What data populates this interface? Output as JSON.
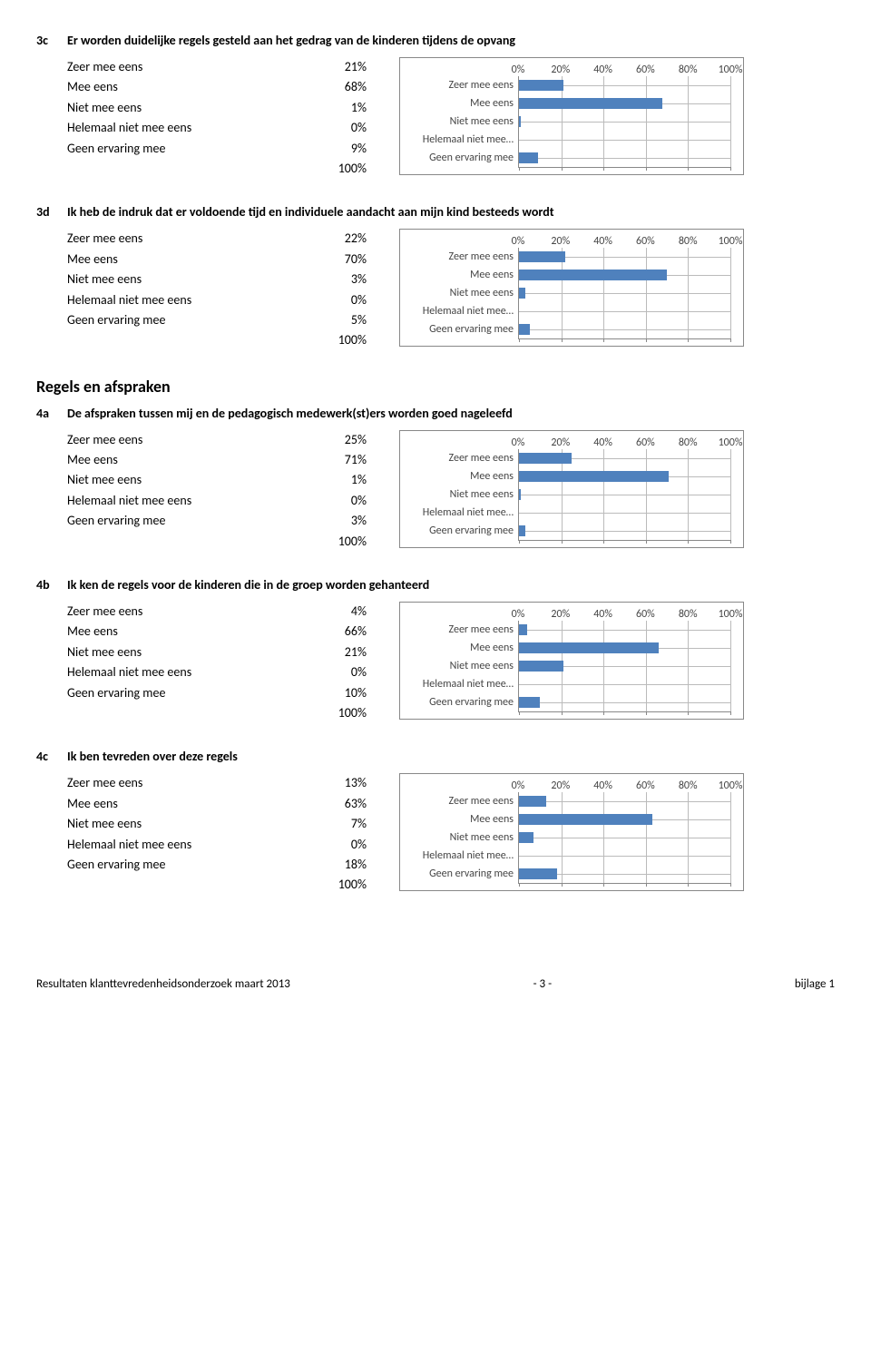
{
  "colors": {
    "bar": "#4f81bd",
    "grid": "#bbbbbb",
    "axis": "#888888",
    "border": "#888888"
  },
  "axis": {
    "ticks": [
      0,
      20,
      40,
      60,
      80,
      100
    ],
    "labels": [
      "0%",
      "20%",
      "40%",
      "60%",
      "80%",
      "100%"
    ]
  },
  "bar_categories": [
    "Zeer mee eens",
    "Mee eens",
    "Niet mee eens",
    "Helemaal niet mee…",
    "Geen ervaring mee"
  ],
  "table_labels": [
    "Zeer mee eens",
    "Mee eens",
    "Niet mee eens",
    "Helemaal niet mee eens",
    "Geen ervaring mee"
  ],
  "section_heading": "Regels en afspraken",
  "questions": [
    {
      "id": "3c",
      "title": "Er worden duidelijke regels gesteld aan het gedrag van de kinderen tijdens de opvang",
      "values_pct": [
        "21%",
        "68%",
        "1%",
        "0%",
        "9%"
      ],
      "total": "100%",
      "bar_values": [
        21,
        68,
        1,
        0,
        9
      ]
    },
    {
      "id": "3d",
      "title": "Ik heb de indruk dat er voldoende tijd en individuele aandacht aan mijn kind besteeds wordt",
      "values_pct": [
        "22%",
        "70%",
        "3%",
        "0%",
        "5%"
      ],
      "total": "100%",
      "bar_values": [
        22,
        70,
        3,
        0,
        5
      ]
    },
    {
      "id": "4a",
      "title": "De afspraken tussen mij en de pedagogisch medewerk(st)ers worden goed nageleefd",
      "values_pct": [
        "25%",
        "71%",
        "1%",
        "0%",
        "3%"
      ],
      "total": "100%",
      "bar_values": [
        25,
        71,
        1,
        0,
        3
      ]
    },
    {
      "id": "4b",
      "title": "Ik ken de regels voor de kinderen die in de groep worden gehanteerd",
      "values_pct": [
        "4%",
        "66%",
        "21%",
        "0%",
        "10%"
      ],
      "total": "100%",
      "bar_values": [
        4,
        66,
        21,
        0,
        10
      ]
    },
    {
      "id": "4c",
      "title": "Ik ben tevreden over deze regels",
      "values_pct": [
        "13%",
        "63%",
        "7%",
        "0%",
        "18%"
      ],
      "total": "100%",
      "bar_values": [
        13,
        63,
        7,
        0,
        18
      ]
    }
  ],
  "footer": {
    "left": "Resultaten klanttevredenheidsonderzoek maart 2013",
    "center": "- 3 -",
    "right": "bijlage 1"
  }
}
